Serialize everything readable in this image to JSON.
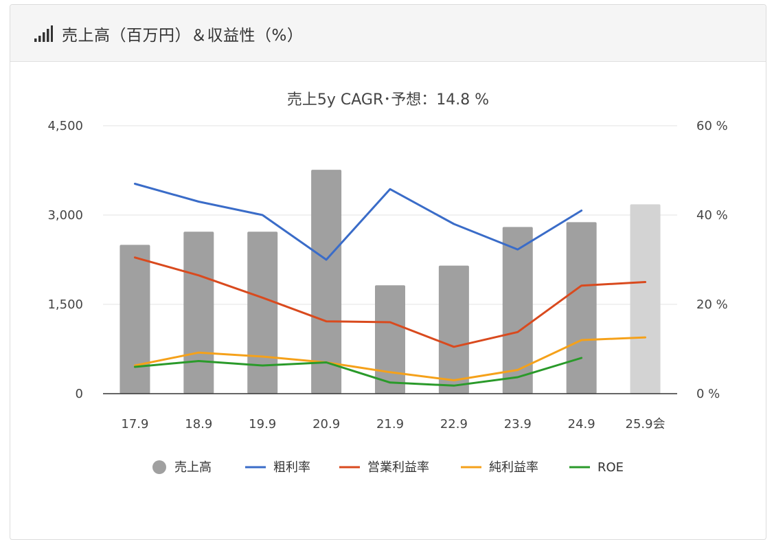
{
  "header": {
    "title": "売上高（百万円）＆収益性（%）",
    "icon": "signal-bars-icon"
  },
  "chart_data": {
    "type": "bar",
    "title": "売上5y CAGR･予想：14.8 %",
    "categories": [
      "17.9",
      "18.9",
      "19.9",
      "20.9",
      "21.9",
      "22.9",
      "23.9",
      "24.9",
      "25.9会"
    ],
    "left_axis": {
      "ylim": [
        0,
        4500
      ],
      "ticks": [
        "0",
        "1,500",
        "3,000",
        "4,500"
      ],
      "tick_values": [
        0,
        1500,
        3000,
        4500
      ]
    },
    "right_axis": {
      "ylim": [
        0,
        60
      ],
      "ticks": [
        "0 %",
        "20 %",
        "40 %",
        "60 %"
      ],
      "tick_values": [
        0,
        20,
        40,
        60
      ]
    },
    "bars": {
      "name": "売上高",
      "values": [
        2500,
        2720,
        2720,
        3760,
        1820,
        2150,
        2800,
        2880,
        3180
      ],
      "colors": [
        "#a0a0a0",
        "#a0a0a0",
        "#a0a0a0",
        "#a0a0a0",
        "#a0a0a0",
        "#a0a0a0",
        "#a0a0a0",
        "#a0a0a0",
        "#d3d3d3"
      ]
    },
    "series": [
      {
        "name": "粗利率",
        "color": "#3a6cc8",
        "values": [
          47.0,
          43.0,
          40.0,
          30.0,
          45.8,
          38.0,
          32.3,
          41.0,
          null
        ]
      },
      {
        "name": "営業利益率",
        "color": "#d94a1e",
        "values": [
          30.5,
          26.5,
          21.5,
          16.2,
          16.0,
          10.5,
          13.8,
          24.2,
          25.0
        ]
      },
      {
        "name": "純利益率",
        "color": "#f5a11a",
        "values": [
          6.3,
          9.2,
          8.3,
          7.0,
          4.8,
          3.0,
          5.3,
          12.0,
          12.6
        ]
      },
      {
        "name": "ROE",
        "color": "#2a9a2a",
        "values": [
          6.0,
          7.3,
          6.3,
          7.0,
          2.5,
          1.8,
          3.7,
          8.0,
          null
        ]
      }
    ],
    "grid": true,
    "legend": "bottom"
  }
}
